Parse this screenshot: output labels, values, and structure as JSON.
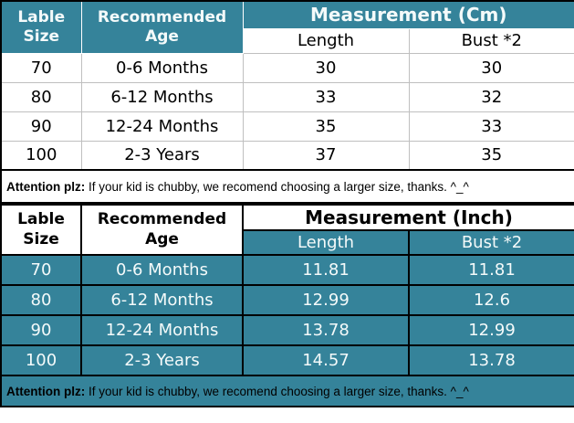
{
  "colors": {
    "teal": "#35839A",
    "grid_gray": "#BFBFBF",
    "border_black": "#000000",
    "text_on_teal": "#F4FAFA"
  },
  "chart_data": [
    {
      "type": "table",
      "title": "Measurement (Cm)",
      "col_headers": [
        "Lable Size",
        "Recommended Age"
      ],
      "group_header": "Measurement (Cm)",
      "sub_headers": [
        "Length",
        "Bust *2"
      ],
      "rows": [
        [
          "70",
          "0-6 Months",
          30,
          30
        ],
        [
          "80",
          "6-12 Months",
          33,
          32
        ],
        [
          "90",
          "12-24 Months",
          35,
          33
        ],
        [
          "100",
          "2-3 Years",
          37,
          35
        ]
      ],
      "note_bold": "Attention plz:",
      "note_text": " If your kid is chubby, we recomend choosing a larger size, thanks. ^_^"
    },
    {
      "type": "table",
      "title": "Measurement (Inch)",
      "col_headers": [
        "Lable Size",
        "Recommended Age"
      ],
      "group_header": "Measurement (Inch)",
      "sub_headers": [
        "Length",
        "Bust *2"
      ],
      "rows": [
        [
          "70",
          "0-6 Months",
          11.81,
          11.81
        ],
        [
          "80",
          "6-12 Months",
          12.99,
          12.6
        ],
        [
          "90",
          "12-24 Months",
          13.78,
          12.99
        ],
        [
          "100",
          "2-3 Years",
          14.57,
          13.78
        ]
      ],
      "note_bold": "Attention plz:",
      "note_text": " If your kid is chubby, we recomend choosing a larger size, thanks. ^_^"
    }
  ]
}
